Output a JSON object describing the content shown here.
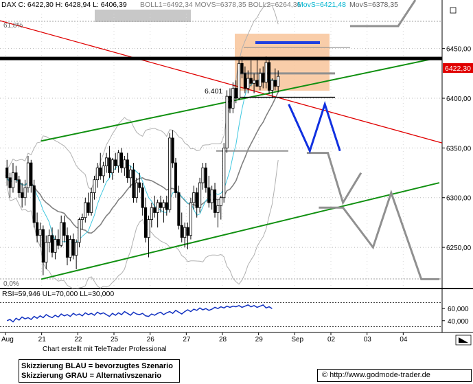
{
  "header": {
    "items": [
      {
        "text": "DAX C: 6422,30 H: 6428,94 L: 6406,39",
        "color": "#000000"
      },
      {
        "text": "BOLL1=6492,34 MOVS=6378,35 BOLL2=6264,36",
        "color": "#808080"
      },
      {
        "text": "MovS=6421,48",
        "color": "#00b4d0"
      },
      {
        "text": "MovS=6378,35",
        "color": "#606060"
      }
    ]
  },
  "fib_labels": {
    "top": "61,8%",
    "bottom": "0,0%"
  },
  "level_label": "6.401",
  "price_tag": "6422,30",
  "rsi_label": "RSI=59,946 UL=70,000 LL=30,000",
  "credit": "Chart erstellt mit TeleTrader Professional",
  "legend": {
    "line1": "Skizzierung BLAU = bevorzugtes Szenario",
    "line2": "Skizzierung GRAU = Alternativszenario"
  },
  "copyright": "© http://www.godmode-trader.de",
  "chart_data": {
    "type": "candlestick",
    "title": "DAX",
    "ylim": [
      6210,
      6485
    ],
    "y_ticks": [
      "6450,00",
      "6400,00",
      "6350,00",
      "6300,00",
      "6250,00"
    ],
    "y_tick_values": [
      6450,
      6400,
      6350,
      6300,
      6250
    ],
    "x_ticks": [
      "Aug",
      "21",
      "22",
      "25",
      "26",
      "27",
      "28",
      "29",
      "Sep",
      "02",
      "03",
      "04"
    ],
    "x_tick_index": [
      0,
      12,
      24,
      36,
      48,
      60,
      72,
      84,
      96,
      108,
      120,
      132
    ],
    "total_slots": 144,
    "candles": [
      [
        6330,
        6338,
        6312,
        6320
      ],
      [
        6320,
        6325,
        6300,
        6310
      ],
      [
        6310,
        6335,
        6305,
        6325
      ],
      [
        6325,
        6332,
        6315,
        6318
      ],
      [
        6318,
        6322,
        6300,
        6305
      ],
      [
        6305,
        6315,
        6290,
        6300
      ],
      [
        6300,
        6318,
        6292,
        6310
      ],
      [
        6310,
        6342,
        6305,
        6335
      ],
      [
        6335,
        6338,
        6305,
        6312
      ],
      [
        6312,
        6318,
        6270,
        6275
      ],
      [
        6275,
        6285,
        6255,
        6262
      ],
      [
        6262,
        6275,
        6250,
        6268
      ],
      [
        6268,
        6272,
        6222,
        6235
      ],
      [
        6235,
        6262,
        6228,
        6255
      ],
      [
        6255,
        6268,
        6245,
        6262
      ],
      [
        6262,
        6270,
        6240,
        6245
      ],
      [
        6245,
        6262,
        6238,
        6258
      ],
      [
        6258,
        6268,
        6248,
        6252
      ],
      [
        6252,
        6282,
        6250,
        6275
      ],
      [
        6275,
        6282,
        6255,
        6262
      ],
      [
        6262,
        6270,
        6232,
        6240
      ],
      [
        6240,
        6262,
        6236,
        6258
      ],
      [
        6258,
        6264,
        6238,
        6242
      ],
      [
        6242,
        6258,
        6228,
        6255
      ],
      [
        6255,
        6280,
        6250,
        6278
      ],
      [
        6278,
        6284,
        6268,
        6280
      ],
      [
        6280,
        6300,
        6275,
        6295
      ],
      [
        6295,
        6305,
        6282,
        6285
      ],
      [
        6285,
        6310,
        6282,
        6305
      ],
      [
        6305,
        6322,
        6298,
        6318
      ],
      [
        6318,
        6335,
        6310,
        6330
      ],
      [
        6330,
        6345,
        6318,
        6322
      ],
      [
        6322,
        6336,
        6315,
        6332
      ],
      [
        6332,
        6345,
        6325,
        6340
      ],
      [
        6340,
        6352,
        6320,
        6325
      ],
      [
        6325,
        6340,
        6318,
        6338
      ],
      [
        6338,
        6345,
        6328,
        6332
      ],
      [
        6332,
        6348,
        6325,
        6345
      ],
      [
        6345,
        6350,
        6325,
        6330
      ],
      [
        6330,
        6342,
        6322,
        6338
      ],
      [
        6338,
        6345,
        6315,
        6320
      ],
      [
        6320,
        6332,
        6310,
        6328
      ],
      [
        6328,
        6335,
        6295,
        6300
      ],
      [
        6300,
        6320,
        6295,
        6315
      ],
      [
        6315,
        6325,
        6305,
        6310
      ],
      [
        6310,
        6315,
        6282,
        6290
      ],
      [
        6290,
        6300,
        6255,
        6260
      ],
      [
        6260,
        6282,
        6240,
        6278
      ],
      [
        6278,
        6295,
        6270,
        6290
      ],
      [
        6290,
        6302,
        6280,
        6285
      ],
      [
        6285,
        6298,
        6270,
        6295
      ],
      [
        6295,
        6302,
        6285,
        6290
      ],
      [
        6290,
        6298,
        6275,
        6295
      ],
      [
        6295,
        6302,
        6282,
        6288
      ],
      [
        6288,
        6365,
        6285,
        6360
      ],
      [
        6360,
        6368,
        6330,
        6335
      ],
      [
        6335,
        6340,
        6300,
        6305
      ],
      [
        6305,
        6312,
        6268,
        6272
      ],
      [
        6272,
        6285,
        6255,
        6260
      ],
      [
        6260,
        6275,
        6250,
        6270
      ],
      [
        6270,
        6275,
        6248,
        6262
      ],
      [
        6262,
        6300,
        6258,
        6295
      ],
      [
        6295,
        6312,
        6288,
        6305
      ],
      [
        6305,
        6310,
        6280,
        6290
      ],
      [
        6290,
        6320,
        6285,
        6315
      ],
      [
        6315,
        6335,
        6308,
        6330
      ],
      [
        6330,
        6335,
        6305,
        6310
      ],
      [
        6310,
        6322,
        6290,
        6295
      ],
      [
        6295,
        6312,
        6288,
        6308
      ],
      [
        6308,
        6315,
        6280,
        6285
      ],
      [
        6285,
        6298,
        6270,
        6292
      ],
      [
        6292,
        6302,
        6278,
        6300
      ],
      [
        6300,
        6355,
        6295,
        6350
      ],
      [
        6350,
        6408,
        6345,
        6402
      ],
      [
        6402,
        6410,
        6385,
        6390
      ],
      [
        6390,
        6416,
        6385,
        6410
      ],
      [
        6410,
        6418,
        6395,
        6400
      ],
      [
        6400,
        6440,
        6398,
        6435
      ],
      [
        6435,
        6442,
        6420,
        6425
      ],
      [
        6425,
        6432,
        6405,
        6410
      ],
      [
        6410,
        6428,
        6405,
        6420
      ],
      [
        6420,
        6438,
        6412,
        6415
      ],
      [
        6415,
        6425,
        6405,
        6418
      ],
      [
        6418,
        6440,
        6412,
        6412
      ],
      [
        6412,
        6430,
        6408,
        6425
      ],
      [
        6425,
        6432,
        6410,
        6416
      ],
      [
        6416,
        6442,
        6410,
        6436
      ],
      [
        6436,
        6440,
        6404,
        6408
      ],
      [
        6408,
        6420,
        6400,
        6418
      ],
      [
        6418,
        6430,
        6408,
        6412
      ],
      [
        6412,
        6428,
        6406,
        6422
      ]
    ],
    "annotations": {
      "resistance_black": 6440,
      "support_level": 6401,
      "grey_level_box_mid": 6425,
      "scenario_blue": [
        [
          94,
          6394
        ],
        [
          101,
          6347
        ],
        [
          106,
          6394
        ],
        [
          111,
          6347
        ]
      ],
      "scenario_grey": [
        [
          100,
          6345
        ],
        [
          107,
          6345
        ],
        [
          112,
          6295
        ],
        [
          118,
          6325
        ]
      ],
      "scenario_grey2": [
        [
          104,
          6290
        ],
        [
          112,
          6290
        ],
        [
          122,
          6250
        ],
        [
          128,
          6305
        ],
        [
          138,
          6218
        ],
        [
          144,
          6218
        ]
      ]
    },
    "rsi": {
      "ylim": [
        25,
        75
      ],
      "levels": [
        70,
        30
      ],
      "y_ticks": [
        "60,000",
        "40,000"
      ],
      "y_tick_values": [
        60,
        40
      ],
      "values": [
        40,
        42,
        38,
        44,
        41,
        46,
        43,
        45,
        42,
        47,
        44,
        48,
        45,
        50,
        47,
        45,
        49,
        46,
        51,
        48,
        50,
        47,
        52,
        49,
        51,
        48,
        53,
        50,
        52,
        49,
        54,
        51,
        53,
        50,
        47,
        52,
        49,
        53,
        50,
        55,
        52,
        49,
        54,
        51,
        50,
        52,
        48,
        47,
        51,
        49,
        52,
        54,
        50,
        53,
        55,
        52,
        57,
        54,
        51,
        55,
        58,
        55,
        59,
        57,
        61,
        58,
        60,
        57,
        59,
        62,
        60,
        63,
        61,
        64,
        62,
        64,
        63,
        65,
        62,
        64,
        66,
        63,
        65,
        62,
        64,
        66,
        61,
        63,
        60
      ]
    }
  }
}
